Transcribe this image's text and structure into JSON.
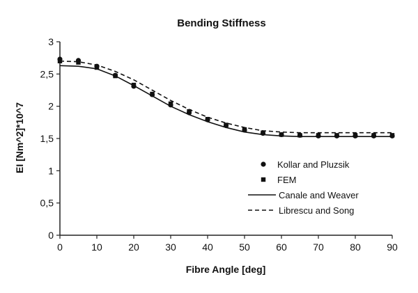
{
  "chart_data": {
    "type": "line",
    "title": "Bending Stiffness",
    "xlabel": "Fibre Angle [deg]",
    "ylabel": "EI  [Nm^2]*10^7",
    "xlim": [
      0,
      90
    ],
    "ylim": [
      0,
      3
    ],
    "x_ticks": [
      0,
      10,
      20,
      30,
      40,
      50,
      60,
      70,
      80,
      90
    ],
    "y_ticks": [
      0,
      0.5,
      1,
      1.5,
      2,
      2.5,
      3
    ],
    "y_tick_labels": [
      "0",
      "0,5",
      "1",
      "1,5",
      "2",
      "2,5",
      "3"
    ],
    "grid": false,
    "legend_position": "right",
    "series": [
      {
        "name": "Kollar and Pluzsik",
        "style": "circle-markers",
        "color": "#111111",
        "x": [
          0,
          5,
          10,
          15,
          20,
          25,
          30,
          35,
          40,
          45,
          50,
          55,
          60,
          65,
          70,
          75,
          80,
          85,
          90
        ],
        "y": [
          2.73,
          2.71,
          2.62,
          2.48,
          2.31,
          2.18,
          2.02,
          1.9,
          1.79,
          1.7,
          1.63,
          1.58,
          1.56,
          1.55,
          1.54,
          1.54,
          1.54,
          1.54,
          1.54
        ]
      },
      {
        "name": "FEM",
        "style": "square-markers",
        "color": "#111111",
        "x": [
          0,
          5,
          10,
          15,
          20,
          25,
          30,
          35,
          40,
          45,
          50,
          55,
          60,
          65,
          70,
          75,
          80,
          85,
          90
        ],
        "y": [
          2.7,
          2.68,
          2.6,
          2.47,
          2.33,
          2.19,
          2.04,
          1.92,
          1.8,
          1.71,
          1.64,
          1.59,
          1.56,
          1.55,
          1.55,
          1.55,
          1.55,
          1.55,
          1.55
        ]
      },
      {
        "name": "Canale and Weaver",
        "style": "solid",
        "color": "#111111",
        "x": [
          0,
          5,
          10,
          15,
          20,
          25,
          30,
          35,
          40,
          45,
          50,
          55,
          60,
          65,
          70,
          75,
          80,
          85,
          90
        ],
        "y": [
          2.63,
          2.62,
          2.58,
          2.47,
          2.32,
          2.16,
          2.0,
          1.87,
          1.76,
          1.67,
          1.6,
          1.56,
          1.54,
          1.53,
          1.53,
          1.53,
          1.53,
          1.53,
          1.53
        ]
      },
      {
        "name": "Librescu and Song",
        "style": "dashed",
        "color": "#111111",
        "x": [
          0,
          5,
          10,
          15,
          20,
          25,
          30,
          35,
          40,
          45,
          50,
          55,
          60,
          65,
          70,
          75,
          80,
          85,
          90
        ],
        "y": [
          2.7,
          2.69,
          2.64,
          2.54,
          2.41,
          2.25,
          2.09,
          1.95,
          1.83,
          1.74,
          1.67,
          1.62,
          1.6,
          1.59,
          1.59,
          1.59,
          1.59,
          1.59,
          1.59
        ]
      }
    ]
  }
}
